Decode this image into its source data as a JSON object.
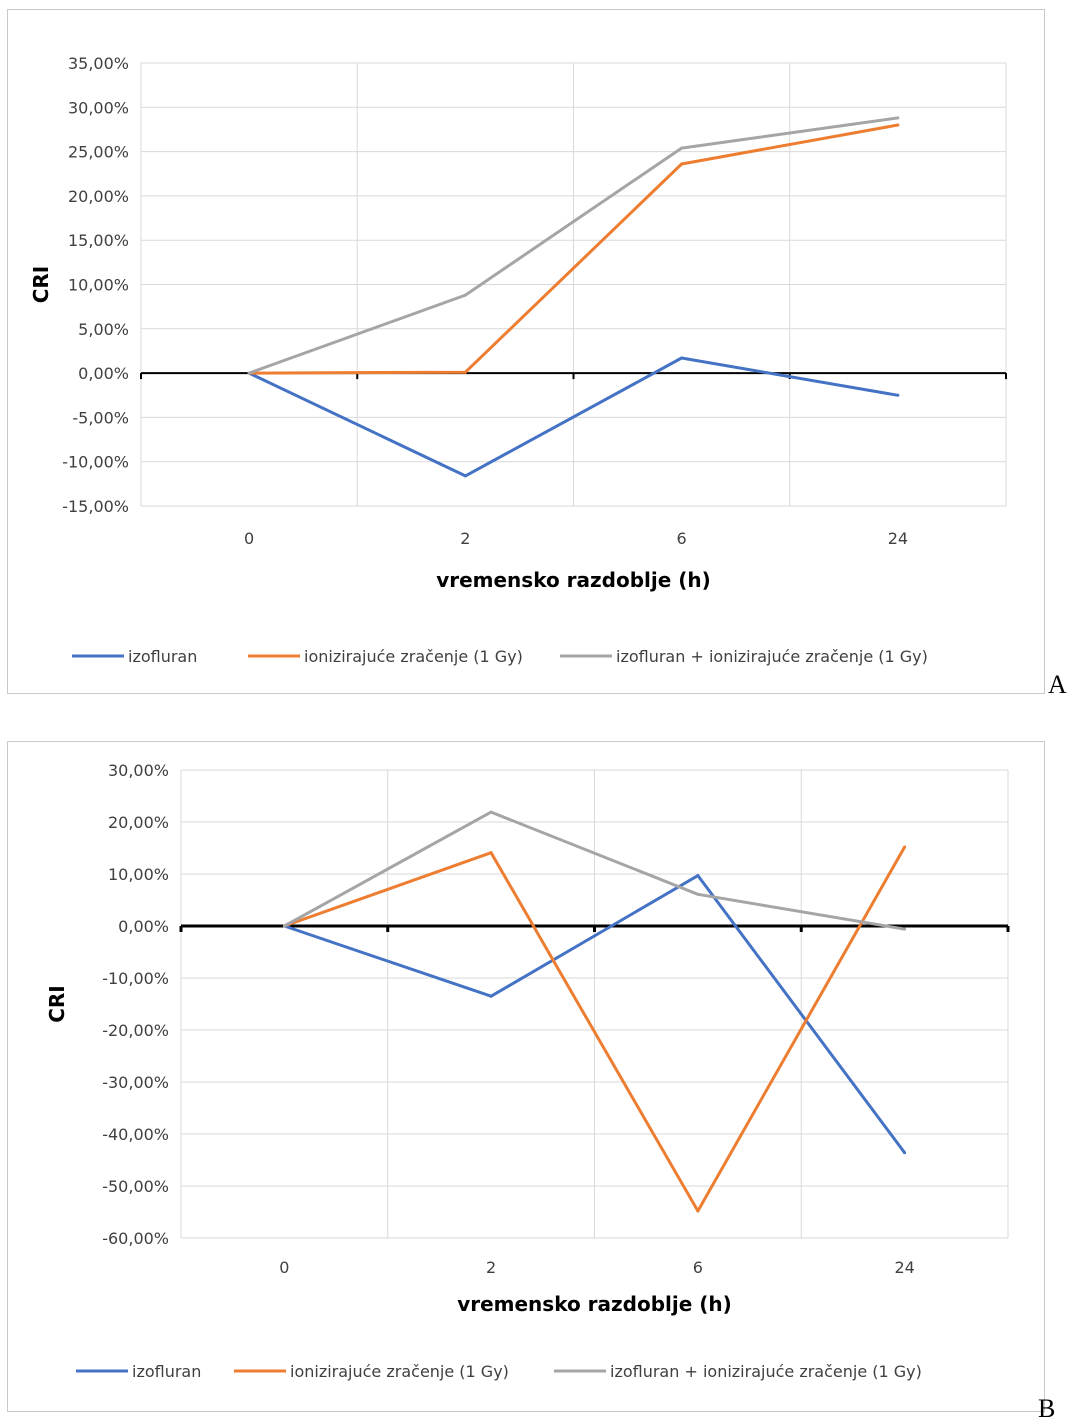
{
  "chart_data": [
    {
      "panel_label": "A",
      "type": "line",
      "title": "",
      "xlabel": "vremensko razdoblje (h)",
      "ylabel": "CRI",
      "categories": [
        "0",
        "2",
        "6",
        "24"
      ],
      "ylim": [
        -15,
        35
      ],
      "yticks": [
        35,
        30,
        25,
        20,
        15,
        10,
        5,
        0,
        -5,
        -10,
        -15
      ],
      "ytick_labels": [
        "35,00%",
        "30,00%",
        "25,00%",
        "20,00%",
        "15,00%",
        "10,00%",
        "5,00%",
        "0,00%",
        "-5,00%",
        "-10,00%",
        "-15,00%"
      ],
      "grid": true,
      "legend_position": "bottom",
      "series": [
        {
          "name": "izofluran",
          "color": "#4472c4",
          "values": [
            0,
            -11.6,
            1.7,
            -2.5
          ]
        },
        {
          "name": "ionizirajuće zračenje (1 Gy)",
          "color": "#ed7d31",
          "values": [
            0,
            0.1,
            23.6,
            28.0
          ]
        },
        {
          "name": "izofluran + ionizirajuće zračenje (1 Gy)",
          "color": "#a5a5a5",
          "values": [
            0,
            8.8,
            25.4,
            28.8
          ]
        }
      ]
    },
    {
      "panel_label": "B",
      "type": "line",
      "title": "",
      "xlabel": "vremensko razdoblje (h)",
      "ylabel": "CRI",
      "categories": [
        "0",
        "2",
        "6",
        "24"
      ],
      "ylim": [
        -60,
        30
      ],
      "yticks": [
        30,
        20,
        10,
        0,
        -10,
        -20,
        -30,
        -40,
        -50,
        -60
      ],
      "ytick_labels": [
        "30,00%",
        "20,00%",
        "10,00%",
        "0,00%",
        "-10,00%",
        "-20,00%",
        "-30,00%",
        "-40,00%",
        "-50,00%",
        "-60,00%"
      ],
      "grid": true,
      "legend_position": "bottom",
      "series": [
        {
          "name": "izofluran",
          "color": "#4472c4",
          "values": [
            0,
            -13.5,
            9.7,
            -43.6
          ]
        },
        {
          "name": "ionizirajuće zračenje (1 Gy)",
          "color": "#ed7d31",
          "values": [
            0,
            14.1,
            -54.8,
            15.2
          ]
        },
        {
          "name": "izofluran + ionizirajuće zračenje (1 Gy)",
          "color": "#a5a5a5",
          "values": [
            0,
            21.9,
            6.1,
            -0.6
          ]
        }
      ]
    }
  ]
}
